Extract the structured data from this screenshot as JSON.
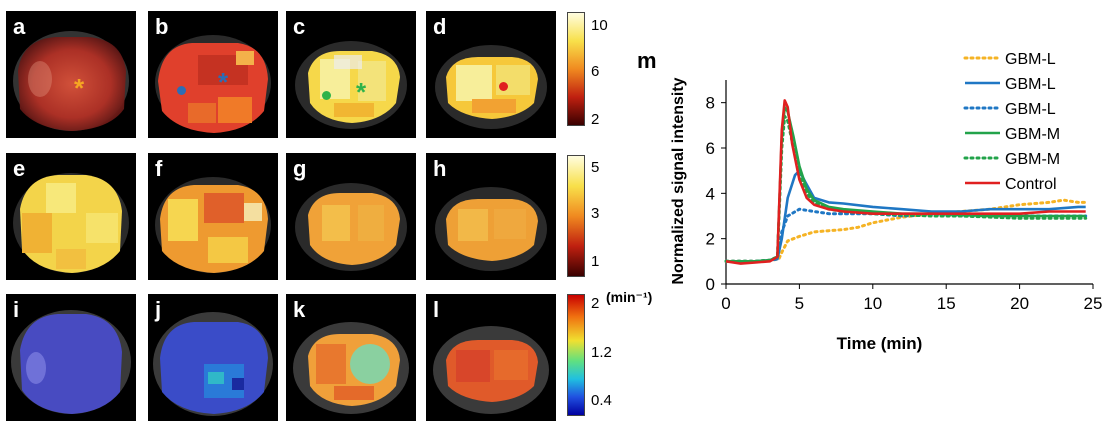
{
  "panels": {
    "row1": [
      {
        "label": "a",
        "marker": "*",
        "marker_color": "#f5a623",
        "dot_color": ""
      },
      {
        "label": "b",
        "marker": "*",
        "marker_color": "#2d6db5",
        "dot_color": "#2d6db5"
      },
      {
        "label": "c",
        "marker": "*",
        "marker_color": "#2fb34a",
        "dot_color": "#2fb34a"
      },
      {
        "label": "d",
        "marker": "",
        "marker_color": "",
        "dot_color": "#e02020"
      }
    ],
    "row2": [
      {
        "label": "e"
      },
      {
        "label": "f"
      },
      {
        "label": "g"
      },
      {
        "label": "h"
      }
    ],
    "row3": [
      {
        "label": "i"
      },
      {
        "label": "j"
      },
      {
        "label": "k"
      },
      {
        "label": "l"
      }
    ]
  },
  "colorbars": {
    "row1": {
      "ticks": [
        "10",
        "6",
        "2"
      ]
    },
    "row2": {
      "ticks": [
        "5",
        "3",
        "1"
      ]
    },
    "row3": {
      "ticks": [
        "2",
        "1.2",
        "0.4"
      ],
      "unit": "(min⁻¹)"
    }
  },
  "chart_label": "m",
  "chart_data": {
    "type": "line",
    "xlabel": "Time (min)",
    "ylabel": "Normalized signal intensity",
    "xlim": [
      0,
      25
    ],
    "ylim": [
      0,
      9
    ],
    "xticks": [
      "0",
      "5",
      "10",
      "15",
      "20",
      "25"
    ],
    "yticks": [
      "0",
      "2",
      "4",
      "6",
      "8"
    ],
    "legend_position": "top-right",
    "series": [
      {
        "name": "GBM-L",
        "color": "#f5b324",
        "style": "dotted",
        "x": [
          0,
          1,
          2,
          3,
          3.6,
          3.8,
          4.2,
          5,
          6,
          7,
          8,
          9,
          10,
          12,
          14,
          16,
          18,
          20,
          22,
          23,
          24,
          24.5
        ],
        "y": [
          1.0,
          1.0,
          1.0,
          1.05,
          1.1,
          1.4,
          1.9,
          2.1,
          2.3,
          2.35,
          2.4,
          2.5,
          2.7,
          2.95,
          3.1,
          3.2,
          3.3,
          3.5,
          3.6,
          3.7,
          3.6,
          3.6
        ]
      },
      {
        "name": "GBM-L",
        "color": "#1f77c4",
        "style": "solid",
        "x": [
          0,
          1,
          2,
          3,
          3.5,
          3.8,
          4.2,
          4.7,
          5,
          5.4,
          6,
          7,
          8,
          10,
          12,
          14,
          16,
          18,
          20,
          22,
          24,
          24.5
        ],
        "y": [
          1.0,
          1.0,
          1.0,
          1.05,
          1.1,
          2.0,
          3.8,
          4.8,
          5.0,
          4.5,
          3.8,
          3.6,
          3.55,
          3.4,
          3.3,
          3.2,
          3.2,
          3.3,
          3.3,
          3.3,
          3.4,
          3.4
        ]
      },
      {
        "name": "GBM-L",
        "color": "#1f77c4",
        "style": "dotted",
        "x": [
          0,
          1,
          2,
          3,
          3.5,
          3.8,
          4.2,
          5,
          6,
          7,
          8,
          10,
          12,
          14,
          16,
          18,
          20,
          22,
          24,
          24.5
        ],
        "y": [
          1.0,
          1.0,
          1.0,
          1.05,
          1.1,
          2.3,
          3.0,
          3.3,
          3.2,
          3.1,
          3.1,
          3.1,
          3.0,
          3.05,
          3.0,
          3.0,
          3.0,
          3.0,
          3.0,
          3.0
        ]
      },
      {
        "name": "GBM-M",
        "color": "#22a34a",
        "style": "solid",
        "x": [
          0,
          1,
          2,
          3,
          3.5,
          3.8,
          4.0,
          4.2,
          4.6,
          5,
          5.5,
          6,
          7,
          8,
          10,
          12,
          14,
          16,
          18,
          20,
          22,
          24,
          24.5
        ],
        "y": [
          1.0,
          1.0,
          1.0,
          1.05,
          1.2,
          6.5,
          7.8,
          7.6,
          6.5,
          5.2,
          4.2,
          3.7,
          3.4,
          3.3,
          3.2,
          3.1,
          3.1,
          3.05,
          3.0,
          3.0,
          3.0,
          3.0,
          3.0
        ]
      },
      {
        "name": "GBM-M",
        "color": "#22a34a",
        "style": "dotted",
        "x": [
          0,
          1,
          2,
          3,
          3.5,
          3.8,
          4.0,
          4.2,
          4.6,
          5,
          5.5,
          6,
          7,
          8,
          10,
          12,
          14,
          16,
          18,
          20,
          22,
          24,
          24.5
        ],
        "y": [
          1.0,
          1.0,
          1.0,
          1.05,
          1.2,
          6.0,
          7.4,
          7.2,
          6.0,
          4.8,
          4.0,
          3.6,
          3.3,
          3.2,
          3.1,
          3.05,
          3.0,
          3.0,
          2.95,
          2.9,
          2.9,
          2.9,
          2.9
        ]
      },
      {
        "name": "Control",
        "color": "#e02020",
        "style": "solid",
        "x": [
          0,
          1,
          2,
          3,
          3.5,
          3.8,
          4.0,
          4.2,
          4.5,
          5,
          5.5,
          6,
          7,
          8,
          10,
          12,
          14,
          16,
          18,
          20,
          22,
          24,
          24.5
        ],
        "y": [
          1.0,
          0.9,
          0.95,
          1.0,
          1.2,
          6.8,
          8.1,
          7.8,
          6.2,
          4.6,
          3.8,
          3.5,
          3.3,
          3.2,
          3.1,
          3.1,
          3.1,
          3.1,
          3.1,
          3.1,
          3.2,
          3.2,
          3.2
        ]
      }
    ]
  }
}
